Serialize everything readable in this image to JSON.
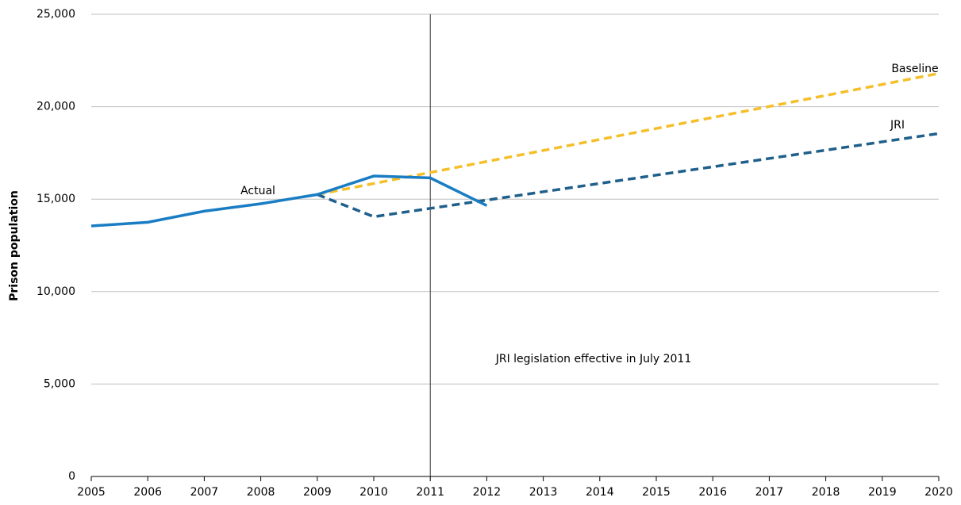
{
  "chart_data": {
    "type": "line",
    "y_label": "Prison population",
    "annotation": "JRI legislation effective in July 2011",
    "vline_x": 2011,
    "series": [
      {
        "name": "Actual",
        "color": "#1a7dc4",
        "dashed": false,
        "x": [
          2005,
          2006,
          2007,
          2008,
          2009,
          2010,
          2011,
          2012
        ],
        "values": [
          13550,
          13750,
          14350,
          14750,
          15250,
          16250,
          16150,
          14650
        ]
      },
      {
        "name": "Baseline",
        "color": "#f5bf2a",
        "dashed": true,
        "x": [
          2009,
          2020
        ],
        "values": [
          15250,
          21800
        ]
      },
      {
        "name": "JRI",
        "color": "#1f5f8b",
        "dashed": true,
        "x": [
          2009,
          2010,
          2020
        ],
        "values": [
          15250,
          14050,
          18550
        ]
      }
    ],
    "xlim": [
      2005,
      2020
    ],
    "xticks": [
      2005,
      2006,
      2007,
      2008,
      2009,
      2010,
      2011,
      2012,
      2013,
      2014,
      2015,
      2016,
      2017,
      2018,
      2019,
      2020
    ],
    "ylim": [
      0,
      25000
    ],
    "yticks": [
      0,
      {
        "value": 5000,
        "label": "5,000"
      },
      {
        "value": 10000,
        "label": "10,000"
      },
      {
        "value": 15000,
        "label": "15,000"
      },
      {
        "value": 20000,
        "label": "20,000"
      },
      {
        "value": 25000,
        "label": "25,000"
      }
    ],
    "grid": true
  }
}
